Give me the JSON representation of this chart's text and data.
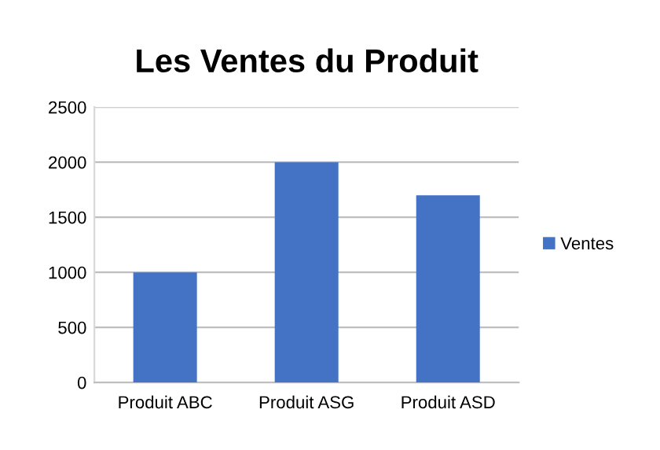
{
  "chart_data": {
    "type": "bar",
    "title": "Les Ventes du Produit",
    "categories": [
      "Produit ABC",
      "Produit ASG",
      "Produit ASD"
    ],
    "series": [
      {
        "name": "Ventes",
        "color": "#4472c4",
        "values": [
          1000,
          2000,
          1700
        ]
      }
    ],
    "ylim": [
      0,
      2500
    ],
    "yticks": [
      0,
      500,
      1000,
      1500,
      2000,
      2500
    ],
    "grid": "y",
    "legend": "right"
  }
}
